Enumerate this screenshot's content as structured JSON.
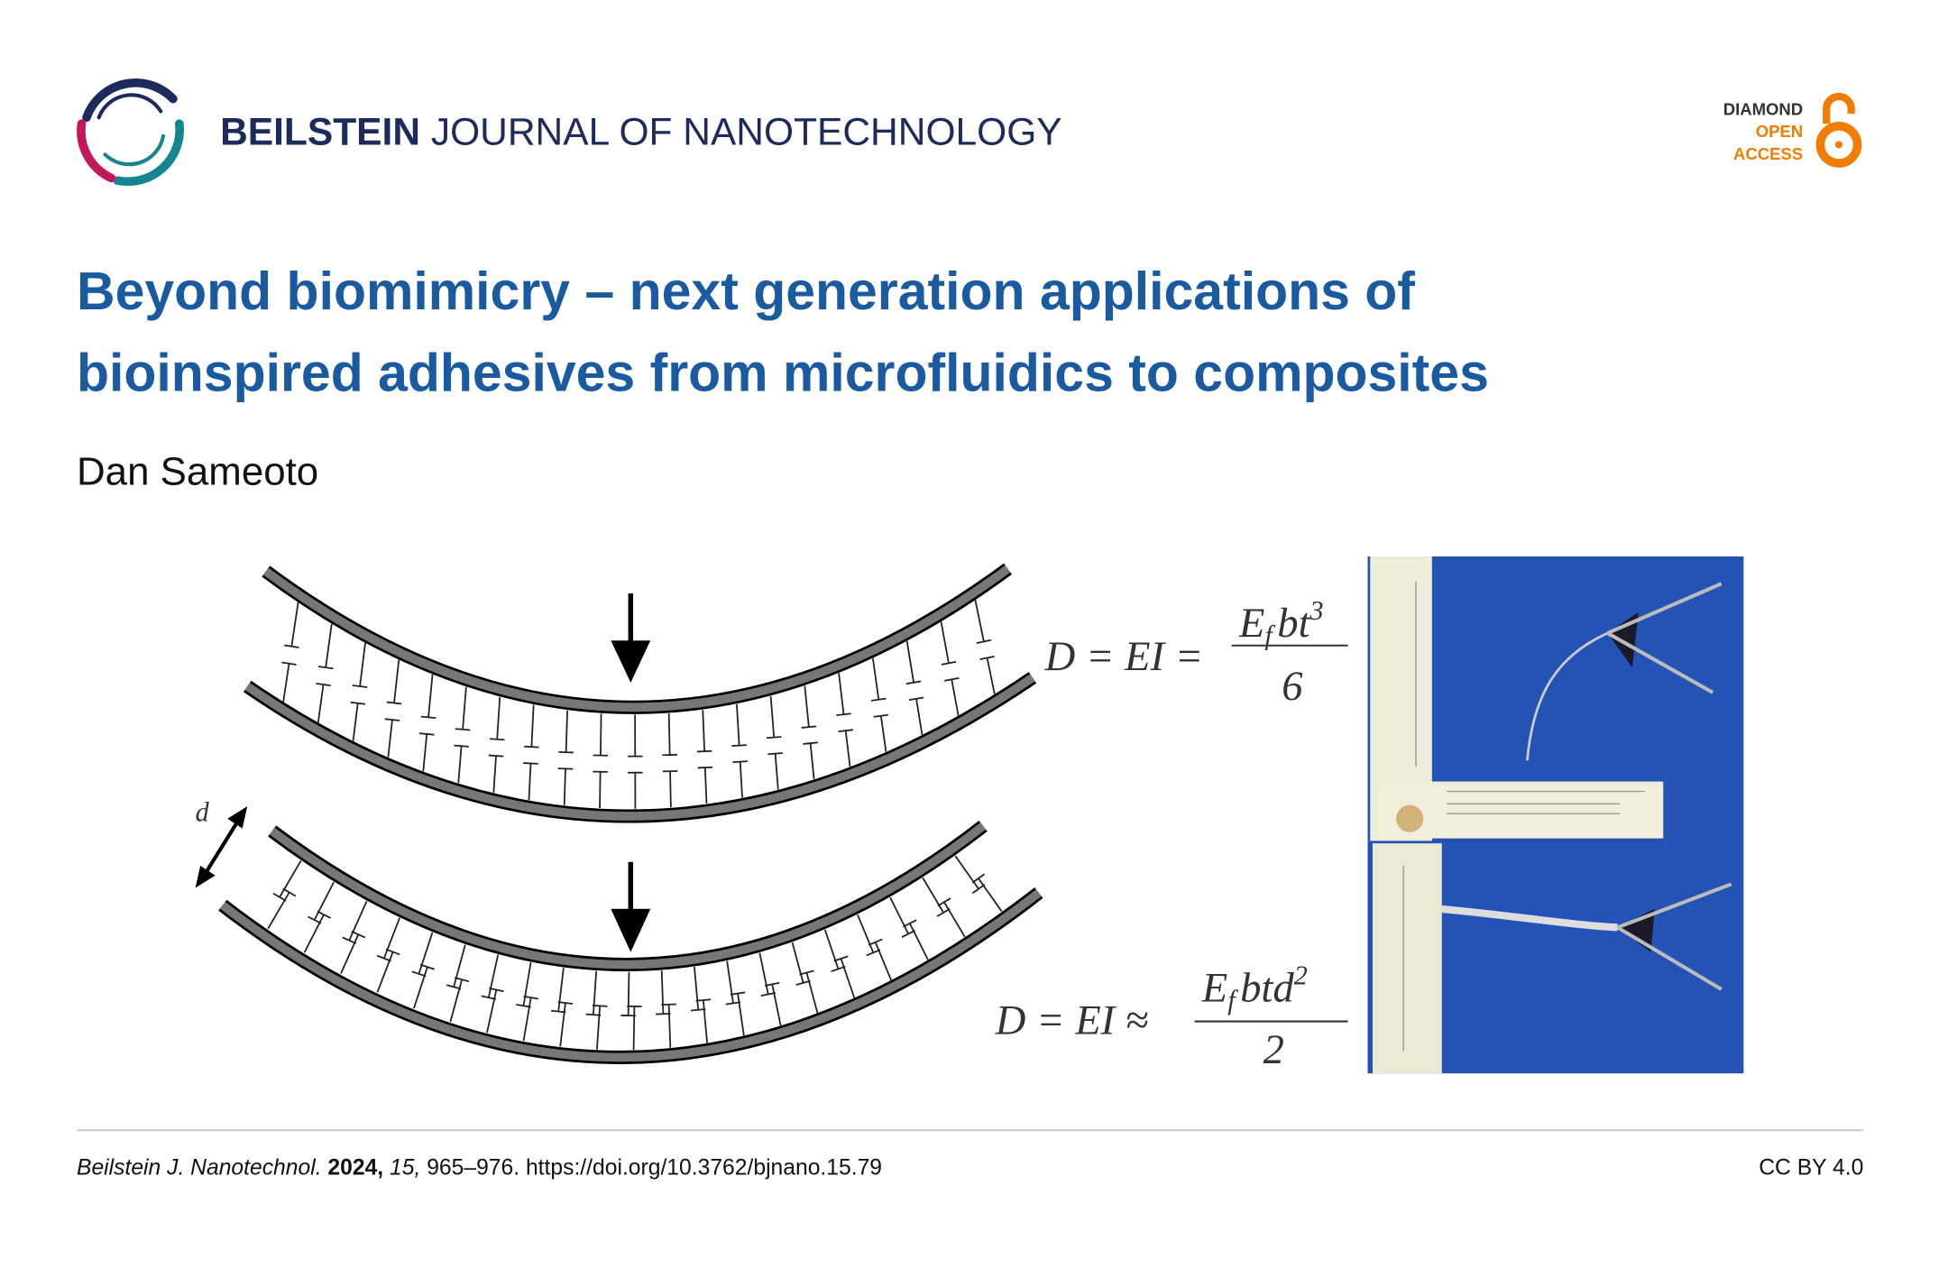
{
  "header": {
    "journal_bold": "BEILSTEIN",
    "journal_rest": "JOURNAL OF NANOTECHNOLOGY",
    "badge": [
      "DIAMOND",
      "OPEN",
      "ACCESS"
    ]
  },
  "article": {
    "title_lines": [
      "Beyond biomimicry – next generation applications of",
      "bioinspired adhesives from microfluidics to composites"
    ],
    "author": "Dan Sameoto"
  },
  "figure": {
    "d_label": "d",
    "equations": [
      {
        "lhs": "D =  EI =",
        "num_base": "E",
        "num_sub": "f",
        "num_rest": "bt",
        "num_sup": "3",
        "denom": "6"
      },
      {
        "lhs": "D =  EI ≈",
        "num_base": "E",
        "num_sub": "f",
        "num_rest": "btd",
        "num_sup": "2",
        "denom": "2"
      }
    ]
  },
  "footer": {
    "journal": "Beilstein J. Nanotechnol.",
    "year": "2024,",
    "volume": "15,",
    "rest": "965–976. https://doi.org/10.3762/bjnano.15.79",
    "license": "CC BY 4.0"
  }
}
